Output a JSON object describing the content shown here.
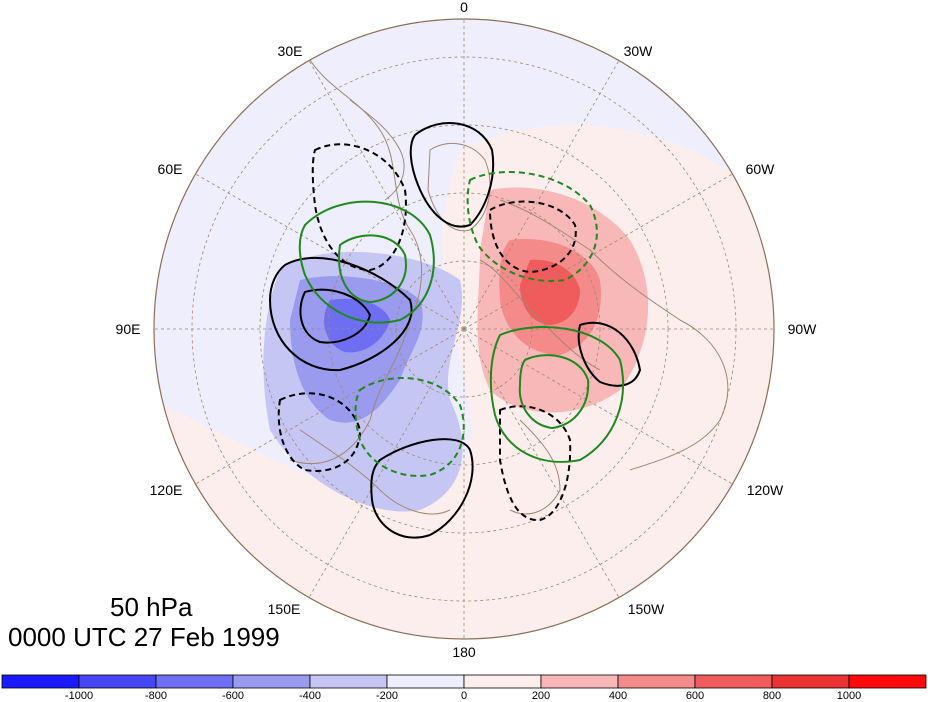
{
  "title": {
    "level": "50 hPa",
    "time": "0000 UTC 27 Feb 1999"
  },
  "longitude_labels": [
    "0",
    "30W",
    "60W",
    "90W",
    "120W",
    "150W",
    "180",
    "150E",
    "120E",
    "90E",
    "60E",
    "30E"
  ],
  "colorbar": {
    "tick_labels": [
      "-1000",
      "-800",
      "-600",
      "-400",
      "-200",
      "0",
      "200",
      "400",
      "600",
      "800",
      "1000"
    ],
    "colors": [
      "#1a1aff",
      "#4646f5",
      "#6e6ef2",
      "#9a9aee",
      "#c6c6f4",
      "#eeeefc",
      "#fdeeee",
      "#f8b8b8",
      "#f48a8a",
      "#f05c5c",
      "#ec3333",
      "#ff0a0a"
    ]
  },
  "colors": {
    "negative_contour": "#000000",
    "secondary_contour": "#1e8a1e",
    "coastline": "#a08870",
    "graticule": "#a08870"
  }
}
